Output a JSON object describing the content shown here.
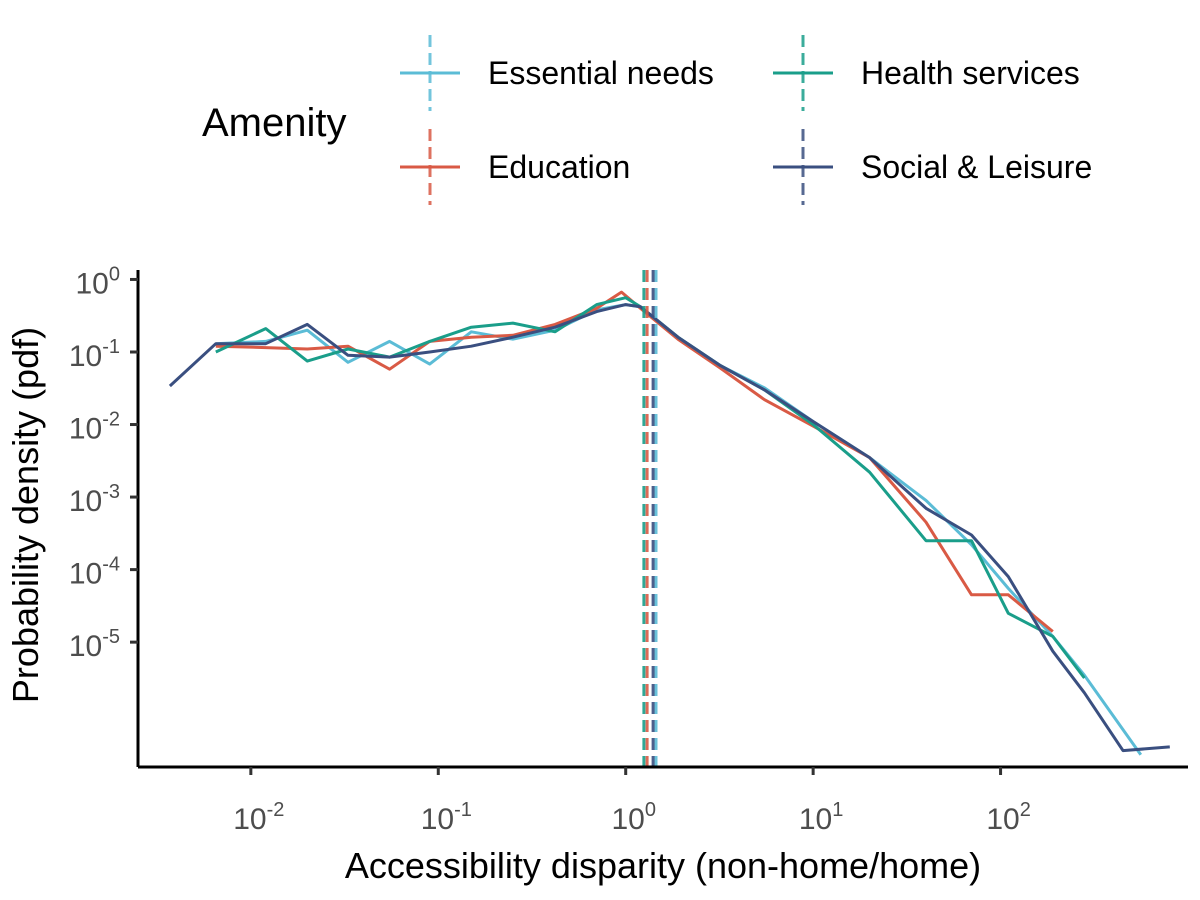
{
  "chart_data": {
    "type": "line",
    "xlabel": "Accessibility disparity (non-home/home)",
    "ylabel": "Probability density (pdf)",
    "x_scale": "log10",
    "y_scale": "log10",
    "xlim": [
      0.0025,
      1000
    ],
    "ylim": [
      1.9e-07,
      1.35
    ],
    "x_ticks": [
      0.01,
      0.1,
      1,
      10,
      100
    ],
    "x_tick_labels": [
      {
        "base": "10",
        "exp": "-2"
      },
      {
        "base": "10",
        "exp": "-1"
      },
      {
        "base": "10",
        "exp": "0"
      },
      {
        "base": "10",
        "exp": "1"
      },
      {
        "base": "10",
        "exp": "2"
      }
    ],
    "y_ticks": [
      1,
      0.1,
      0.01,
      0.001,
      0.0001,
      1e-05
    ],
    "y_tick_labels": [
      {
        "base": "10",
        "exp": "0"
      },
      {
        "base": "10",
        "exp": "-1"
      },
      {
        "base": "10",
        "exp": "-2"
      },
      {
        "base": "10",
        "exp": "-3"
      },
      {
        "base": "10",
        "exp": "-4"
      },
      {
        "base": "10",
        "exp": "-5"
      }
    ],
    "grid": false,
    "legend": {
      "title": "Amenity",
      "placement": "top"
    },
    "series": [
      {
        "name": "Essential needs",
        "color": "#5bbcd6",
        "median": 1.45,
        "points": [
          [
            0.0065,
            0.13
          ],
          [
            0.012,
            0.14
          ],
          [
            0.02,
            0.2
          ],
          [
            0.033,
            0.072
          ],
          [
            0.055,
            0.14
          ],
          [
            0.09,
            0.068
          ],
          [
            0.15,
            0.19
          ],
          [
            0.25,
            0.15
          ],
          [
            0.42,
            0.2
          ],
          [
            0.7,
            0.38
          ],
          [
            1.0,
            0.45
          ],
          [
            1.2,
            0.42
          ],
          [
            1.9,
            0.16
          ],
          [
            3.2,
            0.065
          ],
          [
            5.5,
            0.032
          ],
          [
            10,
            0.011
          ],
          [
            20,
            0.0035
          ],
          [
            40,
            0.0009
          ],
          [
            70,
            0.00022
          ],
          [
            110,
            5.5e-05
          ],
          [
            190,
            1.2e-05
          ],
          [
            280,
            3.5e-06
          ],
          [
            560,
            2.8e-07
          ]
        ]
      },
      {
        "name": "Education",
        "color": "#d95a45",
        "median": 1.3,
        "points": [
          [
            0.0065,
            0.12
          ],
          [
            0.012,
            0.115
          ],
          [
            0.02,
            0.11
          ],
          [
            0.033,
            0.12
          ],
          [
            0.055,
            0.058
          ],
          [
            0.09,
            0.14
          ],
          [
            0.15,
            0.16
          ],
          [
            0.25,
            0.17
          ],
          [
            0.42,
            0.24
          ],
          [
            0.7,
            0.4
          ],
          [
            0.95,
            0.67
          ],
          [
            1.2,
            0.4
          ],
          [
            1.9,
            0.15
          ],
          [
            3.2,
            0.06
          ],
          [
            5.5,
            0.022
          ],
          [
            10,
            0.0095
          ],
          [
            20,
            0.0035
          ],
          [
            40,
            0.00045
          ],
          [
            70,
            4.5e-05
          ],
          [
            110,
            4.5e-05
          ],
          [
            190,
            1.4e-05
          ]
        ]
      },
      {
        "name": "Health services",
        "color": "#1a9e8a",
        "median": 1.25,
        "points": [
          [
            0.0065,
            0.1
          ],
          [
            0.012,
            0.21
          ],
          [
            0.02,
            0.075
          ],
          [
            0.033,
            0.11
          ],
          [
            0.055,
            0.085
          ],
          [
            0.09,
            0.14
          ],
          [
            0.15,
            0.22
          ],
          [
            0.25,
            0.25
          ],
          [
            0.42,
            0.19
          ],
          [
            0.7,
            0.45
          ],
          [
            1.0,
            0.56
          ],
          [
            1.2,
            0.42
          ],
          [
            1.9,
            0.16
          ],
          [
            3.2,
            0.065
          ],
          [
            5.5,
            0.03
          ],
          [
            10,
            0.01
          ],
          [
            20,
            0.0022
          ],
          [
            40,
            0.00025
          ],
          [
            70,
            0.00025
          ],
          [
            110,
            2.5e-05
          ],
          [
            190,
            1.2e-05
          ],
          [
            280,
            3.2e-06
          ]
        ]
      },
      {
        "name": "Social & Leisure",
        "color": "#3a4f80",
        "median": 1.4,
        "points": [
          [
            0.0037,
            0.034
          ],
          [
            0.0065,
            0.13
          ],
          [
            0.012,
            0.13
          ],
          [
            0.02,
            0.24
          ],
          [
            0.033,
            0.09
          ],
          [
            0.055,
            0.085
          ],
          [
            0.09,
            0.1
          ],
          [
            0.15,
            0.12
          ],
          [
            0.25,
            0.16
          ],
          [
            0.42,
            0.22
          ],
          [
            0.7,
            0.36
          ],
          [
            1.0,
            0.45
          ],
          [
            1.2,
            0.42
          ],
          [
            1.9,
            0.16
          ],
          [
            3.2,
            0.065
          ],
          [
            5.5,
            0.03
          ],
          [
            10,
            0.011
          ],
          [
            20,
            0.0035
          ],
          [
            40,
            0.0007
          ],
          [
            70,
            0.0003
          ],
          [
            110,
            8e-05
          ],
          [
            190,
            7.5e-06
          ],
          [
            280,
            2e-06
          ],
          [
            450,
            3.2e-07
          ],
          [
            800,
            3.6e-07
          ]
        ]
      }
    ]
  }
}
